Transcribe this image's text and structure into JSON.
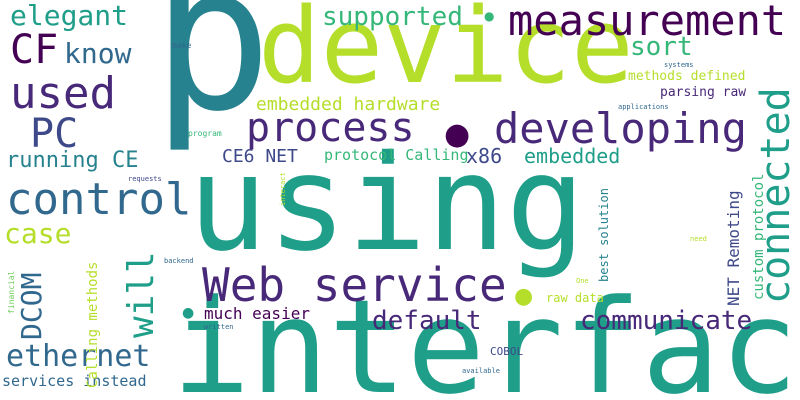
{
  "words": {
    "p": "p",
    "using": "using",
    "interface": "interface",
    "device": "device",
    "web_service": "Web service",
    "measurement": "measurement",
    "process": "process",
    "developing": "developing",
    "connected": "connected",
    "control": "control",
    "used": "used",
    "cf": "CF",
    "pc": "PC",
    "know": "know",
    "elegant": "elegant",
    "supported": "supported",
    "sort": "sort",
    "embedded_hardware": "embedded hardware",
    "running_ce": "running CE",
    "ce6_net": "CE6 NET",
    "protocol_calling": "protocol Calling",
    "x86": "x86",
    "embedded": "embedded",
    "case": "case",
    "will": "will",
    "dcom": "DCOM",
    "ethernet": "ethernet",
    "default": "default",
    "communicate": "communicate",
    "much_easier": "much easier",
    "services_instead": "services instead",
    "methods_defined": "methods defined",
    "parsing_raw": "parsing raw",
    "net_remoting": "NET Remoting",
    "custom_protocol": "custom protocol",
    "best_solution": "best solution",
    "raw_data": "raw data",
    "calling_methods": "Calling methods",
    "cobol": "COBOL",
    "make": "make",
    "systems": "systems",
    "applications": "applications",
    "program": "program",
    "requests": "requests",
    "interact": "interact",
    "backend": "backend",
    "financial": "financial",
    "written": "written",
    "available": "available",
    "need": "need",
    "one": "One"
  },
  "decorations": {
    "dot_glyph": "●"
  }
}
